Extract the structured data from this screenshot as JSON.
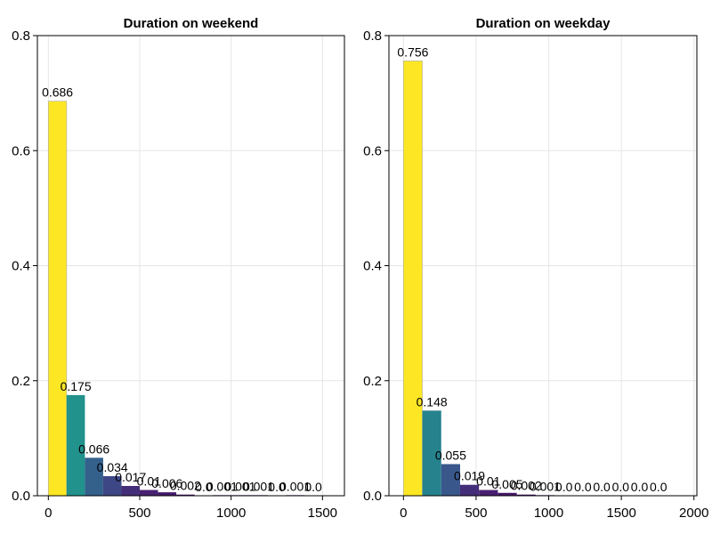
{
  "chart_data": [
    {
      "type": "bar",
      "title": "Duration on weekend",
      "xlabel": "",
      "ylabel": "",
      "xlim": [
        -60,
        1620
      ],
      "ylim": [
        0,
        0.8
      ],
      "xticks": [
        0,
        500,
        1000,
        1500
      ],
      "xtick_labels": [
        "0",
        "500",
        "1000",
        "1500"
      ],
      "yticks": [
        0.0,
        0.2,
        0.4,
        0.6,
        0.8
      ],
      "ytick_labels": [
        "0.0",
        "0.2",
        "0.4",
        "0.6",
        "0.8"
      ],
      "grid": true,
      "bins": [
        {
          "start": 0,
          "end": 100,
          "value": 0.686,
          "label": "0.686"
        },
        {
          "start": 100,
          "end": 200,
          "value": 0.175,
          "label": "0.175"
        },
        {
          "start": 200,
          "end": 300,
          "value": 0.066,
          "label": "0.066"
        },
        {
          "start": 300,
          "end": 400,
          "value": 0.034,
          "label": "0.034"
        },
        {
          "start": 400,
          "end": 500,
          "value": 0.017,
          "label": "0.017"
        },
        {
          "start": 500,
          "end": 600,
          "value": 0.01,
          "label": "0.01"
        },
        {
          "start": 600,
          "end": 700,
          "value": 0.006,
          "label": "0.006"
        },
        {
          "start": 700,
          "end": 800,
          "value": 0.002,
          "label": "0.002"
        },
        {
          "start": 800,
          "end": 900,
          "value": 0.0,
          "label": "0.0"
        },
        {
          "start": 900,
          "end": 1000,
          "value": 0.001,
          "label": "0.001"
        },
        {
          "start": 1000,
          "end": 1100,
          "value": 0.001,
          "label": "0.001"
        },
        {
          "start": 1100,
          "end": 1200,
          "value": 0.001,
          "label": "0.001"
        },
        {
          "start": 1200,
          "end": 1300,
          "value": 0.0,
          "label": "0.0"
        },
        {
          "start": 1300,
          "end": 1400,
          "value": 0.001,
          "label": "0.001"
        },
        {
          "start": 1400,
          "end": 1500,
          "value": 0.0,
          "label": "0.0"
        }
      ]
    },
    {
      "type": "bar",
      "title": "Duration on weekday",
      "xlabel": "",
      "ylabel": "",
      "xlim": [
        -100,
        2020
      ],
      "ylim": [
        0,
        0.8
      ],
      "xticks": [
        0,
        500,
        1000,
        1500,
        2000
      ],
      "xtick_labels": [
        "0",
        "500",
        "1000",
        "1500",
        "2000"
      ],
      "yticks": [
        0.0,
        0.2,
        0.4,
        0.6,
        0.8
      ],
      "ytick_labels": [
        "0.0",
        "0.2",
        "0.4",
        "0.6",
        "0.8"
      ],
      "grid": true,
      "bins": [
        {
          "start": 0,
          "end": 130,
          "value": 0.756,
          "label": "0.756"
        },
        {
          "start": 130,
          "end": 260,
          "value": 0.148,
          "label": "0.148"
        },
        {
          "start": 260,
          "end": 390,
          "value": 0.055,
          "label": "0.055"
        },
        {
          "start": 390,
          "end": 520,
          "value": 0.019,
          "label": "0.019"
        },
        {
          "start": 520,
          "end": 650,
          "value": 0.01,
          "label": "0.01"
        },
        {
          "start": 650,
          "end": 780,
          "value": 0.005,
          "label": "0.005"
        },
        {
          "start": 780,
          "end": 910,
          "value": 0.002,
          "label": "0.002"
        },
        {
          "start": 910,
          "end": 1040,
          "value": 0.001,
          "label": "0.001"
        },
        {
          "start": 1040,
          "end": 1170,
          "value": 0.0,
          "label": "0.0"
        },
        {
          "start": 1170,
          "end": 1300,
          "value": 0.0,
          "label": "0.0"
        },
        {
          "start": 1300,
          "end": 1430,
          "value": 0.0,
          "label": "0.0"
        },
        {
          "start": 1430,
          "end": 1560,
          "value": 0.0,
          "label": "0.0"
        },
        {
          "start": 1560,
          "end": 1690,
          "value": 0.0,
          "label": "0.0"
        },
        {
          "start": 1690,
          "end": 1820,
          "value": 0.0,
          "label": "0.0"
        }
      ]
    }
  ],
  "colors": {
    "colormap": "viridis",
    "grid": "#e5e5e5",
    "axis": "#000000",
    "bar_edge": "#a9a9a9"
  }
}
